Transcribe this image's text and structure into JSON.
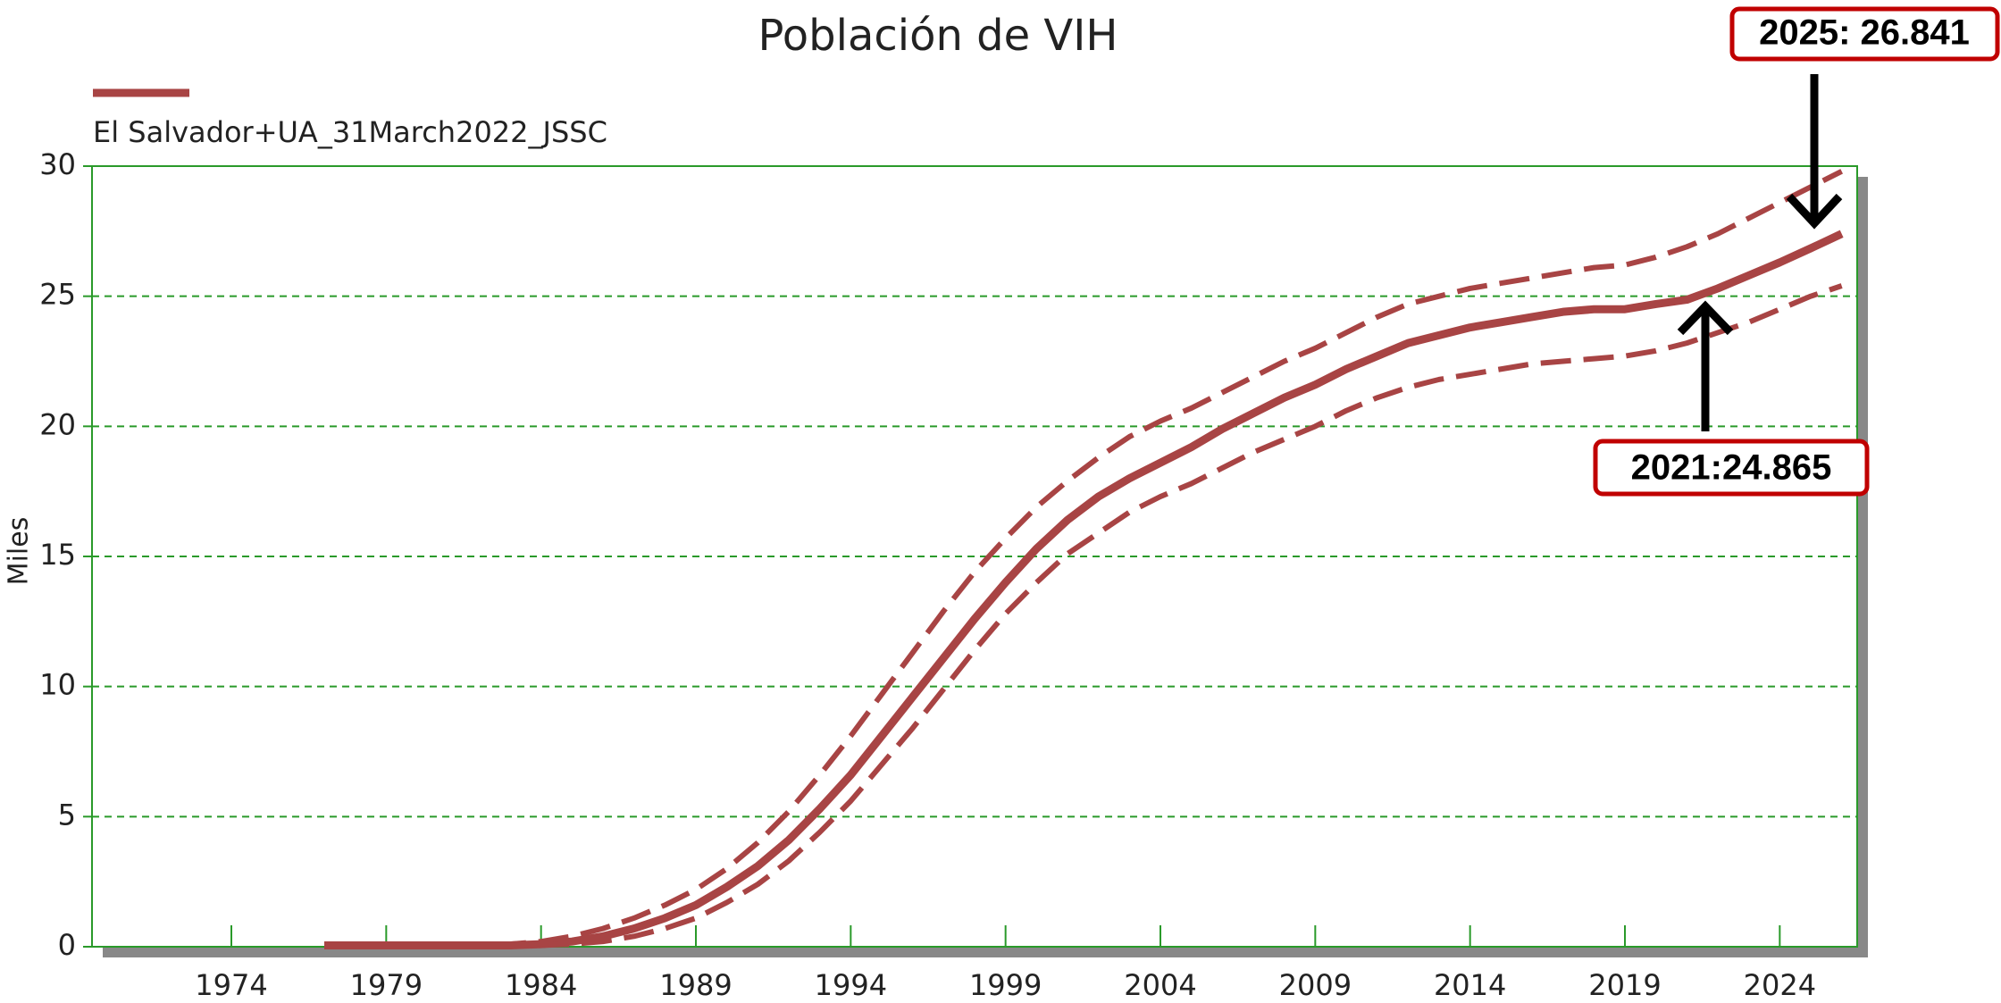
{
  "chart_data": {
    "type": "line",
    "title": "Población de VIH",
    "ylabel": "Miles",
    "x": [
      1977,
      1978,
      1979,
      1980,
      1981,
      1982,
      1983,
      1984,
      1985,
      1986,
      1987,
      1988,
      1989,
      1990,
      1991,
      1992,
      1993,
      1994,
      1995,
      1996,
      1997,
      1998,
      1999,
      2000,
      2001,
      2002,
      2003,
      2004,
      2005,
      2006,
      2007,
      2008,
      2009,
      2010,
      2011,
      2012,
      2013,
      2014,
      2015,
      2016,
      2017,
      2018,
      2019,
      2020,
      2021,
      2022,
      2023,
      2024,
      2025,
      2026
    ],
    "series": [
      {
        "name": "El Salvador+UA_31March2022_JSSC",
        "color": "#a84444",
        "dashed": false,
        "values": [
          0.05,
          0.05,
          0.05,
          0.05,
          0.05,
          0.05,
          0.05,
          0.1,
          0.2,
          0.4,
          0.7,
          1.1,
          1.6,
          2.3,
          3.1,
          4.1,
          5.3,
          6.6,
          8.1,
          9.6,
          11.1,
          12.6,
          14.0,
          15.3,
          16.4,
          17.3,
          18.0,
          18.6,
          19.2,
          19.9,
          20.5,
          21.1,
          21.6,
          22.2,
          22.7,
          23.2,
          23.5,
          23.8,
          24.0,
          24.2,
          24.4,
          24.5,
          24.5,
          24.7,
          24.865,
          25.3,
          25.8,
          26.3,
          26.841,
          27.4
        ]
      },
      {
        "color": "#a84444",
        "dashed": true,
        "values": [
          0.1,
          0.1,
          0.1,
          0.1,
          0.1,
          0.1,
          0.1,
          0.2,
          0.4,
          0.7,
          1.1,
          1.6,
          2.2,
          3.0,
          4.0,
          5.2,
          6.6,
          8.1,
          9.7,
          11.3,
          12.9,
          14.4,
          15.7,
          16.9,
          17.9,
          18.8,
          19.6,
          20.2,
          20.7,
          21.3,
          21.9,
          22.5,
          23.0,
          23.6,
          24.2,
          24.7,
          25.0,
          25.3,
          25.5,
          25.7,
          25.9,
          26.1,
          26.2,
          26.5,
          26.9,
          27.4,
          28.0,
          28.6,
          29.2,
          29.8
        ]
      },
      {
        "color": "#a84444",
        "dashed": true,
        "values": [
          0.03,
          0.03,
          0.03,
          0.03,
          0.03,
          0.03,
          0.03,
          0.05,
          0.1,
          0.2,
          0.4,
          0.7,
          1.1,
          1.7,
          2.4,
          3.3,
          4.4,
          5.6,
          7.0,
          8.4,
          9.9,
          11.4,
          12.8,
          14.0,
          15.1,
          15.9,
          16.7,
          17.3,
          17.8,
          18.4,
          19.0,
          19.5,
          20.0,
          20.6,
          21.1,
          21.5,
          21.8,
          22.0,
          22.2,
          22.4,
          22.5,
          22.6,
          22.7,
          22.9,
          23.2,
          23.6,
          24.0,
          24.5,
          25.0,
          25.4
        ]
      }
    ],
    "xlim": [
      1969.5,
      2026.5
    ],
    "xticks": [
      1974,
      1979,
      1984,
      1989,
      1994,
      1999,
      2004,
      2009,
      2014,
      2019,
      2024
    ],
    "ylim": [
      0,
      30
    ],
    "yticks": [
      0,
      5,
      10,
      15,
      20,
      25,
      30
    ],
    "grid": true,
    "grid_color": "#2a9a2a",
    "annotations": [
      "2025: 26.841",
      "2021:24.865"
    ]
  }
}
